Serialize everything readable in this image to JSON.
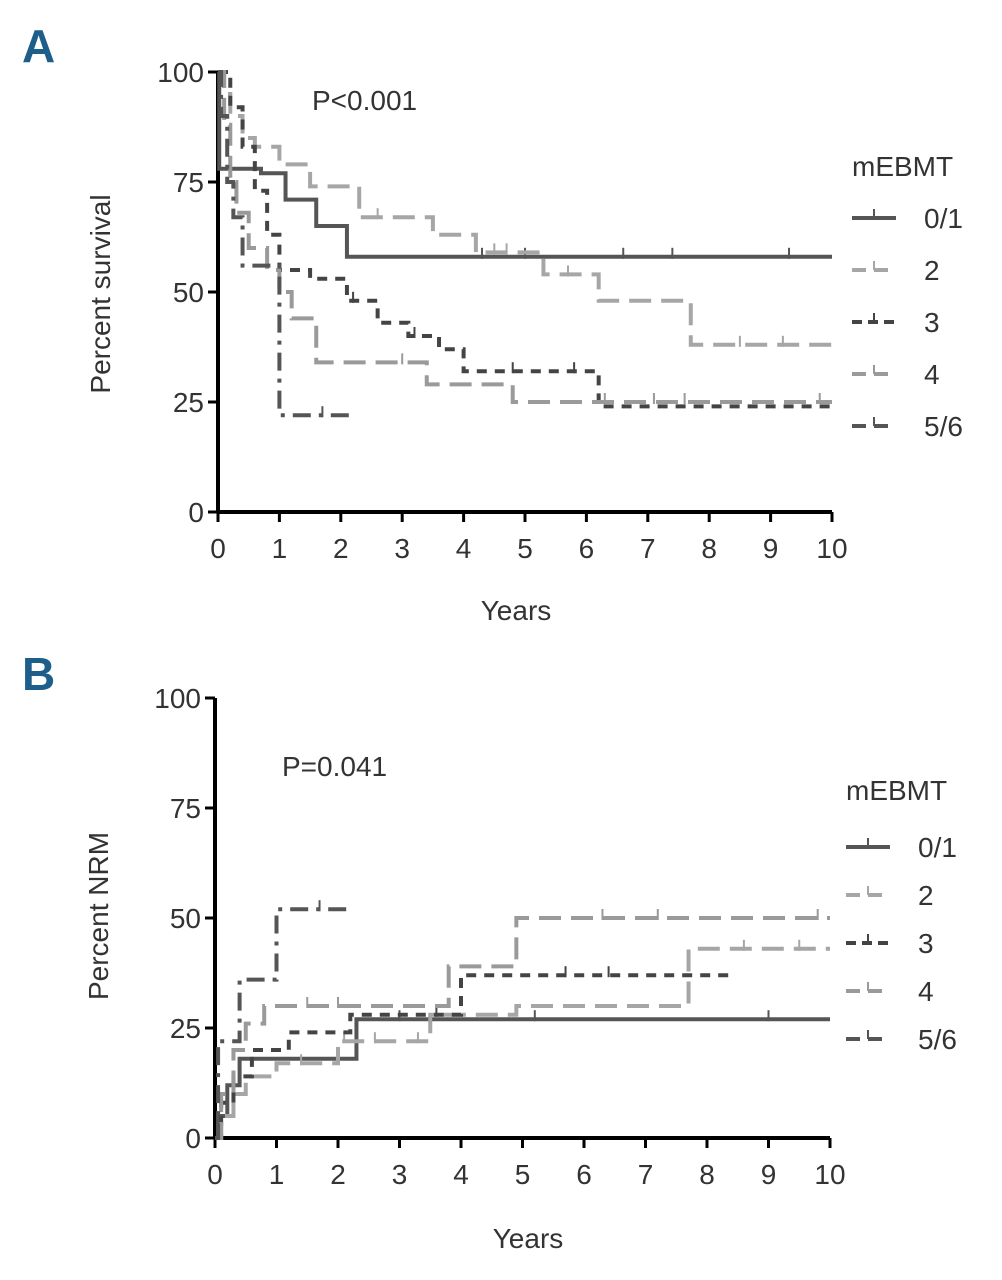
{
  "colors": {
    "s01": "#555555",
    "s2": "#a6a6a6",
    "s3": "#444444",
    "s4": "#9a9a9a",
    "s56": "#555555",
    "panel_letter": "#1d5f8a"
  },
  "chart_data": [
    {
      "panel": "A",
      "type": "line",
      "step": true,
      "p_value": "P<0.001",
      "xlabel": "Years",
      "ylabel": "Percent survival",
      "xlim": [
        0,
        10
      ],
      "ylim": [
        0,
        100
      ],
      "xticks": [
        "0",
        "1",
        "2",
        "3",
        "4",
        "5",
        "6",
        "7",
        "8",
        "9",
        "10"
      ],
      "yticks": [
        "0",
        "25",
        "50",
        "75",
        "100"
      ],
      "legend_title": "mEBMT",
      "series": [
        {
          "name": "0/1",
          "dash": "solid",
          "x": [
            0,
            0.02,
            0.7,
            1.1,
            1.6,
            2.1,
            10
          ],
          "y": [
            100,
            78,
            77,
            71,
            65,
            58,
            58
          ],
          "censor_x": [
            4.3,
            5.0,
            6.6,
            7.4,
            9.3
          ]
        },
        {
          "name": "2",
          "dash": "long",
          "x": [
            0,
            0.1,
            0.2,
            0.4,
            0.6,
            1.0,
            1.5,
            2.3,
            3.5,
            4.2,
            5.3,
            6.2,
            7.7,
            10
          ],
          "y": [
            100,
            95,
            90,
            85,
            83,
            79,
            74,
            67,
            63,
            59,
            54,
            48,
            38,
            38
          ],
          "censor_x": [
            2.6,
            4.5,
            4.7,
            5.7,
            8.5,
            9.2
          ]
        },
        {
          "name": "3",
          "dash": "short",
          "x": [
            0,
            0.2,
            0.4,
            0.6,
            0.8,
            1.0,
            1.5,
            2.1,
            2.6,
            3.1,
            3.6,
            4.0,
            6.2,
            10
          ],
          "y": [
            100,
            92,
            83,
            73,
            63,
            55,
            53,
            48,
            43,
            40,
            37,
            32,
            24,
            24
          ],
          "censor_x": [
            2.2,
            3.2,
            4.8,
            5.8
          ]
        },
        {
          "name": "4",
          "dash": "long",
          "x": [
            0,
            0.1,
            0.2,
            0.3,
            0.5,
            0.8,
            1.0,
            1.2,
            1.6,
            3.4,
            4.8,
            10
          ],
          "y": [
            100,
            88,
            75,
            68,
            60,
            55,
            50,
            44,
            34,
            29,
            25,
            25
          ],
          "censor_x": [
            3.0,
            6.3,
            7.1,
            7.6,
            9.8
          ]
        },
        {
          "name": "5/6",
          "dash": "mixed",
          "x": [
            0,
            0.05,
            0.15,
            0.25,
            0.4,
            0.9,
            1.0,
            2.2
          ],
          "y": [
            100,
            90,
            75,
            67,
            56,
            56,
            22,
            22
          ],
          "censor_x": [
            1.7
          ]
        }
      ]
    },
    {
      "panel": "B",
      "type": "line",
      "step": true,
      "p_value": "P=0.041",
      "xlabel": "Years",
      "ylabel": "Percent NRM",
      "xlim": [
        0,
        10
      ],
      "ylim": [
        0,
        100
      ],
      "xticks": [
        "0",
        "1",
        "2",
        "3",
        "4",
        "5",
        "6",
        "7",
        "8",
        "9",
        "10"
      ],
      "yticks": [
        "0",
        "25",
        "50",
        "75",
        "100"
      ],
      "legend_title": "mEBMT",
      "series": [
        {
          "name": "0/1",
          "dash": "solid",
          "x": [
            0,
            0.05,
            0.2,
            0.4,
            2.2,
            2.3,
            10
          ],
          "y": [
            0,
            5,
            12,
            18,
            18,
            27,
            27
          ],
          "censor_x": [
            3.0,
            5.2,
            9.0
          ]
        },
        {
          "name": "2",
          "dash": "long",
          "x": [
            0,
            0.1,
            0.3,
            0.5,
            1.0,
            2.0,
            3.5,
            4.9,
            7.7,
            10
          ],
          "y": [
            0,
            5,
            10,
            14,
            17,
            22,
            28,
            30,
            43,
            43
          ],
          "censor_x": [
            1.4,
            2.1,
            2.6,
            3.3,
            8.6,
            9.5
          ]
        },
        {
          "name": "3",
          "dash": "short",
          "x": [
            0,
            0.1,
            0.3,
            0.6,
            1.2,
            2.2,
            4.0,
            8.4
          ],
          "y": [
            0,
            8,
            14,
            20,
            24,
            28,
            37,
            37
          ],
          "censor_x": [
            3.6,
            5.7,
            6.4
          ]
        },
        {
          "name": "4",
          "dash": "long",
          "x": [
            0,
            0.1,
            0.3,
            0.5,
            0.8,
            2.2,
            3.4,
            3.8,
            4.9,
            10
          ],
          "y": [
            0,
            10,
            20,
            26,
            30,
            30,
            30,
            39,
            50,
            50
          ],
          "censor_x": [
            1.5,
            2.0,
            6.3,
            7.2,
            9.8
          ]
        },
        {
          "name": "5/6",
          "dash": "mixed",
          "x": [
            0,
            0.05,
            0.4,
            1.0,
            2.2
          ],
          "y": [
            0,
            22,
            36,
            52,
            52
          ],
          "censor_x": [
            1.7
          ]
        }
      ]
    }
  ]
}
